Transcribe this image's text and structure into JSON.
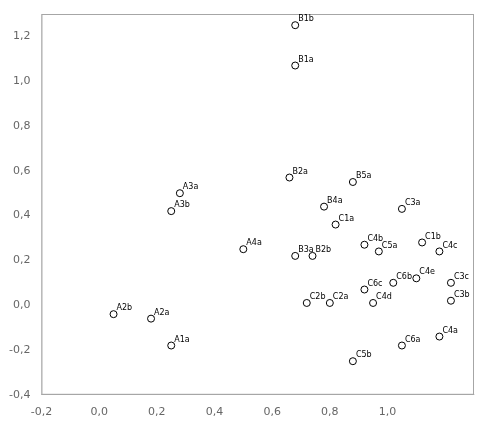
{
  "chart_data": {
    "type": "scatter",
    "labels": [
      "B1b",
      "B1a",
      "B2a",
      "A3a",
      "A3b",
      "A4a",
      "A2b",
      "A2a",
      "A1a",
      "B5a",
      "B4a",
      "C1a",
      "B3a",
      "B2b",
      "C2b",
      "C2a",
      "C3a",
      "C4b",
      "C5a",
      "C1b",
      "C4c",
      "C6c",
      "C6b",
      "C4e",
      "C3c",
      "C4d",
      "C3b",
      "C6a",
      "C4a",
      "C5b"
    ],
    "x": [
      0.68,
      0.68,
      0.66,
      0.28,
      0.25,
      0.5,
      0.05,
      0.18,
      0.25,
      0.88,
      0.78,
      0.82,
      0.68,
      0.74,
      0.72,
      0.8,
      1.05,
      0.92,
      0.97,
      1.12,
      1.18,
      0.92,
      1.02,
      1.1,
      1.22,
      0.95,
      1.22,
      1.05,
      1.18,
      0.88
    ],
    "values": [
      1.25,
      1.07,
      0.57,
      0.5,
      0.42,
      0.25,
      -0.04,
      -0.06,
      -0.18,
      0.55,
      0.44,
      0.36,
      0.22,
      0.22,
      0.01,
      0.01,
      0.43,
      0.27,
      0.24,
      0.28,
      0.24,
      0.07,
      0.1,
      0.12,
      0.1,
      0.01,
      0.02,
      -0.18,
      -0.14,
      -0.25
    ],
    "color": "#000000",
    "marker": "circle",
    "xlim": [
      -0.2,
      1.3
    ],
    "xticks": [
      {
        "value": -0.2,
        "label": "-0,2"
      },
      {
        "value": 0.0,
        "label": "0,0"
      },
      {
        "value": 0.2,
        "label": "0,2"
      },
      {
        "value": 0.4,
        "label": "0,4"
      },
      {
        "value": 0.6,
        "label": "0,6"
      },
      {
        "value": 0.8,
        "label": "0,8"
      },
      {
        "value": 1.0,
        "label": "1,0"
      }
    ],
    "ylim": [
      -0.4,
      1.3
    ],
    "yticks": [
      {
        "value": -0.4,
        "label": "-0,4"
      },
      {
        "value": -0.2,
        "label": "-0,2"
      },
      {
        "value": 0.0,
        "label": "0,0"
      },
      {
        "value": 0.2,
        "label": "0,2"
      },
      {
        "value": 0.4,
        "label": "0,4"
      },
      {
        "value": 0.6,
        "label": "0,6"
      },
      {
        "value": 0.8,
        "label": "0,8"
      },
      {
        "value": 1.0,
        "label": "1,0"
      },
      {
        "value": 1.2,
        "label": "1,2"
      }
    ],
    "grid": false
  }
}
